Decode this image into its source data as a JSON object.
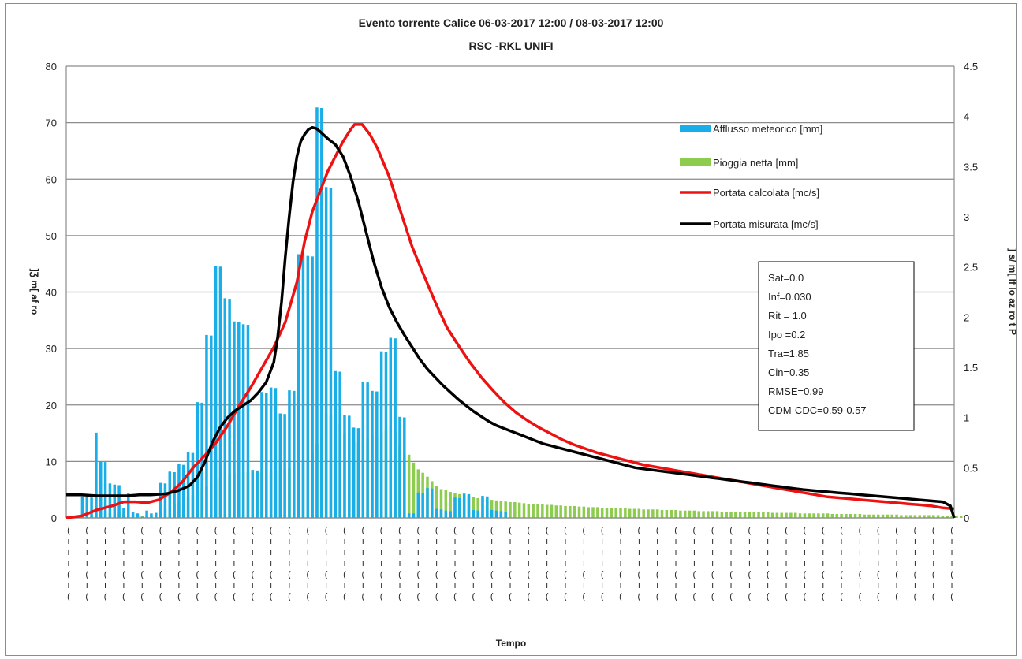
{
  "chart_data": {
    "type": "bar+line",
    "title": "Evento torrente Calice 06-03-2017 12:00 / 08-03-2017 12:00",
    "subtitle": "RSC -RKL UNIFI",
    "xlabel": "Tempo",
    "ylabel_left": "]Ʒ m[ af ro",
    "ylabel_right": "] s/ m[ lf lo az ro t P",
    "ylim_left": [
      0,
      80
    ],
    "yticks_left": [
      "0",
      "10",
      "20",
      "30",
      "40",
      "50",
      "60",
      "70",
      "80"
    ],
    "ylim_right": [
      0,
      4.5
    ],
    "yticks_right": [
      "0",
      "0.5",
      "1",
      "1.5",
      "2",
      "2.5",
      "3",
      "3.5",
      "4",
      "4.5"
    ],
    "n_steps": 193,
    "x_tick_every": 4,
    "x_tick_text": "(\nı\nı\nı\n(\nı\n(",
    "grid": true,
    "legend_position": "top-right",
    "colors": {
      "afflusso": "#1aaee8",
      "pioggia": "#8dcc4e",
      "calcolata": "#ee1111",
      "misurata": "#000000",
      "grid": "#8c8c8c"
    },
    "series": [
      {
        "name": "Afflusso meteorico [mm]",
        "type": "bar",
        "axis": "left",
        "values": [
          0,
          0,
          0,
          3.8,
          3.7,
          3.6,
          15.1,
          10,
          9.9,
          6.1,
          5.9,
          5.8,
          1.8,
          4.4,
          1.1,
          0.8,
          0.2,
          1.3,
          0.8,
          0.9,
          6.2,
          6.1,
          8.2,
          8.1,
          9.5,
          9.4,
          11.6,
          11.5,
          20.5,
          20.4,
          32.4,
          32.3,
          44.6,
          44.5,
          38.9,
          38.8,
          34.8,
          34.7,
          34.3,
          34.2,
          8.5,
          8.4,
          22.3,
          22.2,
          23.1,
          23,
          18.5,
          18.4,
          22.6,
          22.5,
          46.7,
          46.6,
          46.4,
          46.3,
          72.7,
          72.6,
          58.6,
          58.5,
          26,
          25.9,
          18.2,
          18.1,
          16,
          15.9,
          24.1,
          24,
          22.5,
          22.4,
          29.5,
          29.4,
          31.9,
          31.8,
          17.9,
          17.8,
          0.8,
          0.8,
          4.5,
          4.4,
          5.3,
          5.2,
          1.6,
          1.5,
          1.3,
          1.2,
          3.6,
          3.5,
          4.3,
          4.2,
          1.4,
          1.3,
          3.9,
          3.8,
          1.4,
          1.3,
          1.2,
          1.1,
          0,
          0,
          0,
          0,
          0,
          0,
          0,
          0,
          0,
          0,
          0,
          0,
          0,
          0,
          0,
          0,
          0,
          0,
          0,
          0,
          0,
          0,
          0,
          0,
          0,
          0,
          0,
          0,
          0,
          0,
          0,
          0,
          0,
          0,
          0,
          0,
          0,
          0,
          0,
          0,
          0,
          0,
          0,
          0,
          0,
          0,
          0,
          0,
          0,
          0,
          0,
          0,
          0,
          0,
          0,
          0,
          0,
          0,
          0,
          0,
          0,
          0,
          0,
          0,
          0,
          0,
          0,
          0,
          0,
          0,
          0,
          0,
          0,
          0,
          0,
          0,
          0,
          0,
          0,
          0,
          0,
          0,
          0,
          0,
          0,
          0,
          0,
          0,
          0,
          0,
          0,
          0,
          0,
          0,
          0,
          0,
          0,
          0,
          0,
          0
        ]
      },
      {
        "name": "Pioggia netta [mm]",
        "type": "bar",
        "axis": "left",
        "values": [
          0,
          0,
          0,
          0,
          0,
          0.5,
          0.8,
          1,
          1.2,
          0.8,
          0.7,
          1,
          0.8,
          0.5,
          0.4,
          0.3,
          0.3,
          0.4,
          0.5,
          0.8,
          1.1,
          1.5,
          2,
          2.4,
          2.8,
          3.2,
          3.6,
          4,
          4.6,
          5.2,
          5.6,
          6.1,
          6.6,
          7,
          7.4,
          7.8,
          7.9,
          8,
          8.1,
          8.1,
          8.2,
          8.2,
          8.2,
          8.3,
          8.3,
          8.3,
          8.3,
          8.5,
          8.8,
          9.2,
          9.6,
          10,
          10.5,
          11.5,
          13.1,
          14.5,
          18.5,
          18.3,
          17,
          16.5,
          15,
          14,
          13.5,
          13.2,
          13.5,
          14,
          14.5,
          14.2,
          15,
          15.5,
          16.1,
          15.2,
          13,
          11.4,
          11.2,
          9.8,
          8.6,
          8,
          7.3,
          6.5,
          5.7,
          5.1,
          4.9,
          4.6,
          4.4,
          4.2,
          4.1,
          3.9,
          3.7,
          3.5,
          3.4,
          3.3,
          3.2,
          3.1,
          3,
          2.9,
          2.8,
          2.8,
          2.7,
          2.6,
          2.5,
          2.5,
          2.4,
          2.4,
          2.3,
          2.3,
          2.2,
          2.2,
          2.1,
          2.1,
          2.1,
          2,
          2,
          1.9,
          1.9,
          1.9,
          1.8,
          1.8,
          1.8,
          1.7,
          1.7,
          1.7,
          1.6,
          1.6,
          1.6,
          1.5,
          1.5,
          1.5,
          1.5,
          1.4,
          1.4,
          1.4,
          1.4,
          1.3,
          1.3,
          1.3,
          1.3,
          1.2,
          1.2,
          1.2,
          1.2,
          1.2,
          1.1,
          1.1,
          1.1,
          1.1,
          1.1,
          1,
          1,
          1,
          1,
          1,
          1,
          0.9,
          0.9,
          0.9,
          0.9,
          0.9,
          0.9,
          0.8,
          0.8,
          0.8,
          0.8,
          0.8,
          0.8,
          0.8,
          0.7,
          0.7,
          0.7,
          0.7,
          0.7,
          0.7,
          0.7,
          0.6,
          0.6,
          0.6,
          0.6,
          0.6,
          0.6,
          0.6,
          0.6,
          0.5,
          0.5,
          0.5,
          0.5,
          0.5,
          0.5,
          0.5,
          0.5,
          0.5,
          0.4,
          0.4,
          0.4,
          0.4,
          0.4
        ]
      },
      {
        "name": "Portata calcolata [mc/s]",
        "type": "line",
        "axis": "right",
        "points": [
          [
            0,
            0
          ],
          [
            4,
            0.02
          ],
          [
            8,
            0.08
          ],
          [
            12,
            0.12
          ],
          [
            15,
            0.16
          ],
          [
            18,
            0.16
          ],
          [
            21,
            0.15
          ],
          [
            24,
            0.18
          ],
          [
            27,
            0.25
          ],
          [
            30,
            0.35
          ],
          [
            33,
            0.5
          ],
          [
            36,
            0.62
          ],
          [
            39,
            0.75
          ],
          [
            42,
            0.92
          ],
          [
            45,
            1.12
          ],
          [
            48,
            1.3
          ],
          [
            51,
            1.5
          ],
          [
            54,
            1.7
          ],
          [
            57,
            1.95
          ],
          [
            60,
            2.35
          ],
          [
            62,
            2.75
          ],
          [
            64,
            3.05
          ],
          [
            66,
            3.25
          ],
          [
            68,
            3.45
          ],
          [
            70,
            3.6
          ],
          [
            72,
            3.75
          ],
          [
            74,
            3.87
          ],
          [
            75,
            3.92
          ],
          [
            77,
            3.92
          ],
          [
            79,
            3.82
          ],
          [
            81,
            3.68
          ],
          [
            84,
            3.4
          ],
          [
            87,
            3.05
          ],
          [
            90,
            2.7
          ],
          [
            93,
            2.42
          ],
          [
            96,
            2.15
          ],
          [
            99,
            1.9
          ],
          [
            102,
            1.72
          ],
          [
            105,
            1.55
          ],
          [
            108,
            1.4
          ],
          [
            111,
            1.27
          ],
          [
            114,
            1.15
          ],
          [
            117,
            1.05
          ],
          [
            120,
            0.97
          ],
          [
            123,
            0.9
          ],
          [
            126,
            0.84
          ],
          [
            129,
            0.78
          ],
          [
            132,
            0.73
          ],
          [
            135,
            0.69
          ],
          [
            138,
            0.65
          ],
          [
            141,
            0.62
          ],
          [
            144,
            0.59
          ],
          [
            147,
            0.56
          ],
          [
            150,
            0.53
          ],
          [
            153,
            0.51
          ],
          [
            156,
            0.49
          ],
          [
            159,
            0.47
          ],
          [
            162,
            0.45
          ],
          [
            165,
            0.43
          ],
          [
            168,
            0.41
          ],
          [
            171,
            0.39
          ],
          [
            174,
            0.37
          ],
          [
            177,
            0.35
          ],
          [
            180,
            0.33
          ],
          [
            183,
            0.31
          ],
          [
            186,
            0.29
          ],
          [
            189,
            0.27
          ],
          [
            192,
            0.25
          ],
          [
            195,
            0.23
          ],
          [
            198,
            0.21
          ],
          [
            201,
            0.2
          ],
          [
            204,
            0.19
          ],
          [
            207,
            0.18
          ],
          [
            210,
            0.17
          ],
          [
            213,
            0.16
          ],
          [
            216,
            0.15
          ],
          [
            219,
            0.14
          ],
          [
            222,
            0.13
          ],
          [
            225,
            0.12
          ],
          [
            228,
            0.1
          ],
          [
            231,
            0.09
          ]
        ]
      },
      {
        "name": "Portata misurata  [mc/s]",
        "type": "line",
        "axis": "right",
        "points": [
          [
            0,
            0.23
          ],
          [
            4,
            0.23
          ],
          [
            8,
            0.22
          ],
          [
            12,
            0.22
          ],
          [
            16,
            0.22
          ],
          [
            19,
            0.23
          ],
          [
            22,
            0.23
          ],
          [
            26,
            0.24
          ],
          [
            29,
            0.27
          ],
          [
            32,
            0.32
          ],
          [
            34,
            0.4
          ],
          [
            36,
            0.55
          ],
          [
            38,
            0.75
          ],
          [
            40,
            0.9
          ],
          [
            42,
            1
          ],
          [
            44,
            1.07
          ],
          [
            46,
            1.12
          ],
          [
            48,
            1.17
          ],
          [
            50,
            1.25
          ],
          [
            52,
            1.35
          ],
          [
            54,
            1.55
          ],
          [
            55,
            1.8
          ],
          [
            56,
            2.15
          ],
          [
            57,
            2.6
          ],
          [
            58,
            3
          ],
          [
            59,
            3.35
          ],
          [
            60,
            3.6
          ],
          [
            61,
            3.75
          ],
          [
            62,
            3.82
          ],
          [
            63,
            3.87
          ],
          [
            64,
            3.89
          ],
          [
            65,
            3.88
          ],
          [
            66,
            3.85
          ],
          [
            68,
            3.78
          ],
          [
            70,
            3.72
          ],
          [
            72,
            3.6
          ],
          [
            74,
            3.4
          ],
          [
            76,
            3.15
          ],
          [
            78,
            2.85
          ],
          [
            80,
            2.55
          ],
          [
            82,
            2.3
          ],
          [
            84,
            2.1
          ],
          [
            86,
            1.95
          ],
          [
            88,
            1.82
          ],
          [
            90,
            1.7
          ],
          [
            92,
            1.58
          ],
          [
            94,
            1.48
          ],
          [
            96,
            1.4
          ],
          [
            98,
            1.32
          ],
          [
            100,
            1.25
          ],
          [
            102,
            1.18
          ],
          [
            104,
            1.12
          ],
          [
            106,
            1.06
          ],
          [
            108,
            1.01
          ],
          [
            110,
            0.96
          ],
          [
            112,
            0.92
          ],
          [
            114,
            0.89
          ],
          [
            116,
            0.86
          ],
          [
            118,
            0.83
          ],
          [
            120,
            0.8
          ],
          [
            122,
            0.77
          ],
          [
            124,
            0.74
          ],
          [
            126,
            0.72
          ],
          [
            128,
            0.7
          ],
          [
            130,
            0.68
          ],
          [
            132,
            0.66
          ],
          [
            134,
            0.64
          ],
          [
            136,
            0.62
          ],
          [
            138,
            0.6
          ],
          [
            140,
            0.58
          ],
          [
            142,
            0.56
          ],
          [
            144,
            0.54
          ],
          [
            146,
            0.52
          ],
          [
            148,
            0.5
          ],
          [
            150,
            0.49
          ],
          [
            152,
            0.48
          ],
          [
            154,
            0.47
          ],
          [
            156,
            0.46
          ],
          [
            158,
            0.45
          ],
          [
            160,
            0.44
          ],
          [
            162,
            0.43
          ],
          [
            164,
            0.42
          ],
          [
            166,
            0.41
          ],
          [
            168,
            0.4
          ],
          [
            170,
            0.39
          ],
          [
            172,
            0.38
          ],
          [
            174,
            0.37
          ],
          [
            176,
            0.36
          ],
          [
            178,
            0.35
          ],
          [
            180,
            0.34
          ],
          [
            182,
            0.33
          ],
          [
            184,
            0.32
          ],
          [
            186,
            0.31
          ],
          [
            188,
            0.3
          ],
          [
            190,
            0.29
          ],
          [
            192,
            0.28
          ],
          [
            195,
            0.27
          ],
          [
            198,
            0.26
          ],
          [
            201,
            0.25
          ],
          [
            204,
            0.24
          ],
          [
            207,
            0.23
          ],
          [
            210,
            0.22
          ],
          [
            213,
            0.21
          ],
          [
            216,
            0.2
          ],
          [
            219,
            0.19
          ],
          [
            222,
            0.18
          ],
          [
            225,
            0.17
          ],
          [
            228,
            0.16
          ],
          [
            230,
            0.12
          ],
          [
            231,
            0.0
          ]
        ]
      }
    ],
    "parameters": [
      "Sat=0.0",
      "Inf=0.030",
      "Rit = 1.0",
      "Ipo =0.2",
      "Tra=1.85",
      "Cin=0.35",
      "RMSE=0.99",
      "CDM-CDC=0.59-0.57"
    ]
  }
}
